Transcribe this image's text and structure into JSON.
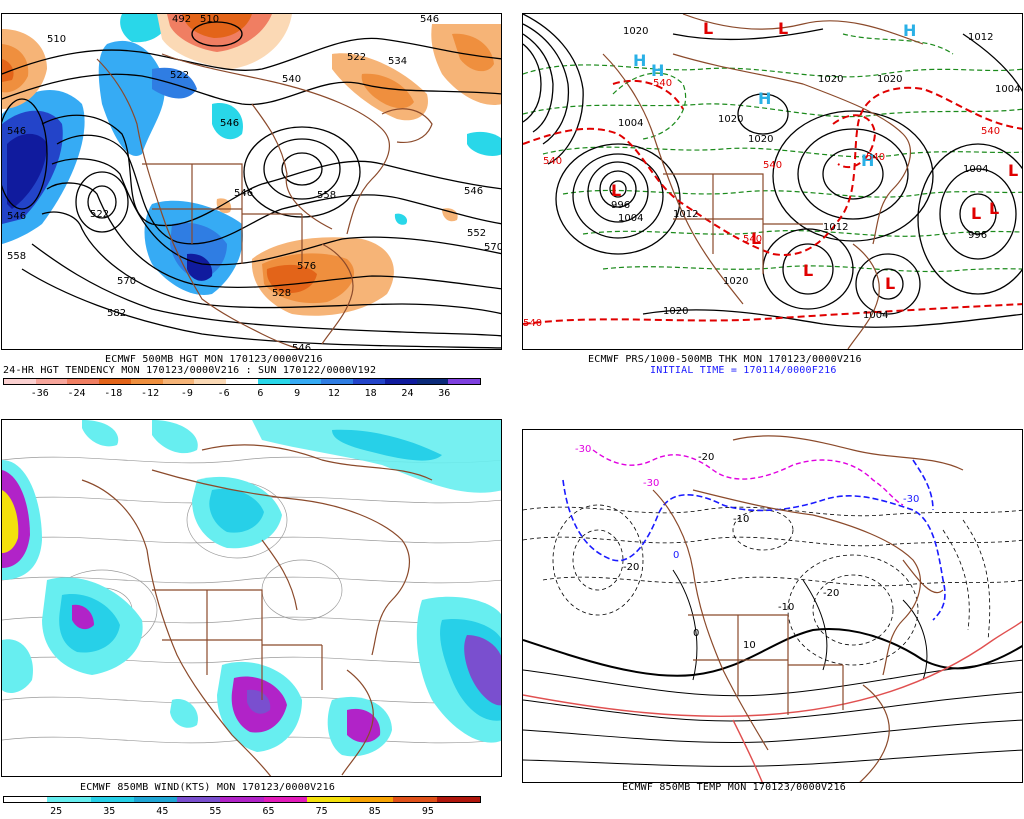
{
  "panels": {
    "top_left": {
      "caption_line1": "ECMWF 500MB HGT MON 170123/0000V216",
      "caption_line2": "24-HR HGT TENDENCY MON 170123/0000V216 : SUN 170122/0000V192",
      "colorbar": {
        "colors": [
          "#fbd0d0",
          "#f7a59b",
          "#f07e62",
          "#e36419",
          "#ef8f3e",
          "#f6b477",
          "#fbd9b5",
          "#ffffff",
          "#29d7e9",
          "#36abf4",
          "#2f7de3",
          "#2344c9",
          "#101b9e",
          "#0b2a7a",
          "#7e3fdf"
        ],
        "ticks": [
          "-36",
          "-24",
          "-18",
          "-12",
          "-9",
          "-6",
          "6",
          "9",
          "12",
          "18",
          "24",
          "36"
        ]
      },
      "contour_labels": [
        "492",
        "510",
        "510",
        "522",
        "546",
        "534",
        "522",
        "540",
        "546",
        "546",
        "558",
        "546",
        "552",
        "570",
        "546",
        "522",
        "546",
        "558",
        "570",
        "576",
        "582",
        "528",
        "546"
      ]
    },
    "top_right": {
      "caption_line1": "ECMWF PRS/1000-500MB THK MON 170123/0000V216",
      "caption_line2": "INITIAL TIME = 170114/0000F216",
      "pressure_labels": [
        "1020",
        "1020",
        "1012",
        "1004",
        "1004",
        "1020",
        "1020",
        "1012",
        "1012",
        "1004",
        "996",
        "1020",
        "1004",
        "1004",
        "996",
        "1020",
        "1020"
      ],
      "thickness_labels": [
        "540",
        "540",
        "540",
        "540",
        "540",
        "540",
        "540"
      ],
      "centers": [
        "H",
        "H",
        "H",
        "H",
        "H",
        "L",
        "L",
        "L",
        "L",
        "L",
        "L",
        "L",
        "L",
        "L"
      ]
    },
    "bottom_left": {
      "caption_line1": "ECMWF 850MB WIND(KTS) MON 170123/0000V216",
      "colorbar": {
        "colors": [
          "#ffffff",
          "#67eef0",
          "#27d0e8",
          "#1fa6d5",
          "#7a4fcf",
          "#b123c8",
          "#e31aba",
          "#f4e10c",
          "#f7a405",
          "#e0511a",
          "#b0160c"
        ],
        "ticks": [
          "25",
          "35",
          "45",
          "55",
          "65",
          "75",
          "85",
          "95"
        ]
      }
    },
    "bottom_right": {
      "caption_line1": "ECMWF 850MB TEMP MON 170123/0000V216",
      "isotherm_labels": [
        "-30",
        "-30",
        "-20",
        "-10",
        "-30",
        "0",
        "10",
        "-20",
        "-10",
        "-20",
        "0"
      ]
    }
  }
}
